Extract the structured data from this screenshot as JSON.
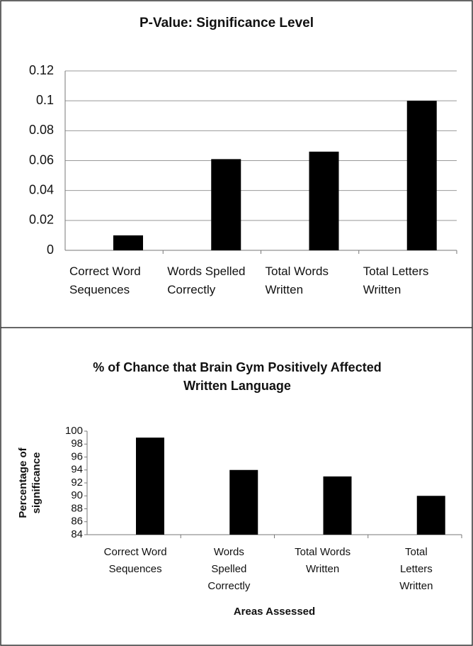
{
  "chart_data": [
    {
      "type": "bar",
      "title": "P-Value: Significance Level",
      "categories": [
        "Correct Word Sequences",
        "Words Spelled Correctly",
        "Total Words Written",
        "Total Letters Written"
      ],
      "values": [
        0.01,
        0.061,
        0.066,
        0.1
      ],
      "color": "#000000",
      "ylim": [
        0,
        0.12
      ],
      "yticks": [
        0,
        0.02,
        0.04,
        0.06,
        0.08,
        0.1,
        0.12
      ],
      "grid": true
    },
    {
      "type": "bar",
      "title": "% of Chance that Brain Gym Positively Affected Written Language",
      "y_label": "Percentage of significance",
      "x_label": "Areas Assessed",
      "categories": [
        "Correct Word Sequences",
        "Words Spelled Correctly",
        "Total Words Written",
        "Total Letters Written"
      ],
      "values": [
        99,
        94,
        93,
        90
      ],
      "color": "#000000",
      "ylim": [
        84,
        100
      ],
      "yticks": [
        84,
        86,
        88,
        90,
        92,
        94,
        96,
        98,
        100
      ],
      "grid": false
    }
  ]
}
